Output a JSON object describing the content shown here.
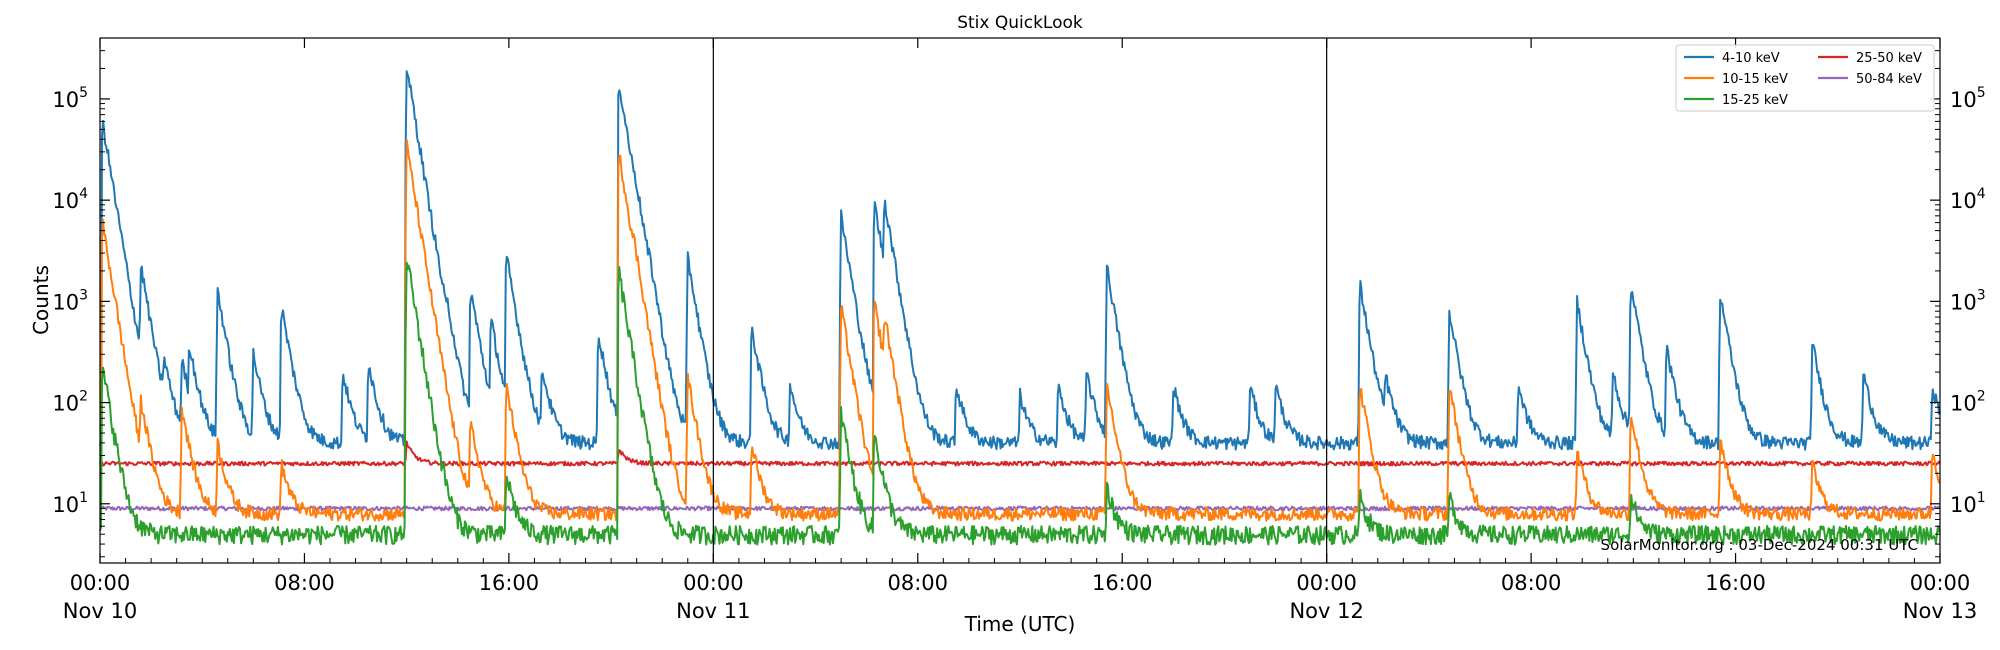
{
  "chart_data": {
    "type": "line",
    "title": "Stix QuickLook",
    "xlabel": "Time (UTC)",
    "ylabel": "Counts",
    "yscale": "log",
    "ylim": [
      2.6,
      400000
    ],
    "xlim_hours": [
      0,
      72
    ],
    "x_ticks": [
      {
        "hour": 0,
        "time": "00:00",
        "date": "Nov 10"
      },
      {
        "hour": 8,
        "time": "08:00",
        "date": ""
      },
      {
        "hour": 16,
        "time": "16:00",
        "date": ""
      },
      {
        "hour": 24,
        "time": "00:00",
        "date": "Nov 11"
      },
      {
        "hour": 32,
        "time": "08:00",
        "date": ""
      },
      {
        "hour": 40,
        "time": "16:00",
        "date": ""
      },
      {
        "hour": 48,
        "time": "00:00",
        "date": "Nov 12"
      },
      {
        "hour": 56,
        "time": "08:00",
        "date": ""
      },
      {
        "hour": 64,
        "time": "16:00",
        "date": ""
      },
      {
        "hour": 72,
        "time": "00:00",
        "date": "Nov 13"
      }
    ],
    "y_ticks": [
      {
        "value": 10,
        "base": "10",
        "exp": "1"
      },
      {
        "value": 100,
        "base": "10",
        "exp": "2"
      },
      {
        "value": 1000,
        "base": "10",
        "exp": "3"
      },
      {
        "value": 10000,
        "base": "10",
        "exp": "4"
      },
      {
        "value": 100000,
        "base": "10",
        "exp": "5"
      }
    ],
    "day_boundaries_hours": [
      24,
      48
    ],
    "grid": false,
    "legend_position": "top-right",
    "series": [
      {
        "name": "4-10 keV",
        "color": "#1f77b4",
        "baseline": 40,
        "events": [
          {
            "t": 0.1,
            "peak": 60000
          },
          {
            "t": 0.8,
            "peak": 150
          },
          {
            "t": 1.6,
            "peak": 2000
          },
          {
            "t": 2.5,
            "peak": 200
          },
          {
            "t": 3.2,
            "peak": 250
          },
          {
            "t": 3.5,
            "peak": 300
          },
          {
            "t": 4.6,
            "peak": 1300
          },
          {
            "t": 6.0,
            "peak": 300
          },
          {
            "t": 7.1,
            "peak": 900
          },
          {
            "t": 9.5,
            "peak": 200
          },
          {
            "t": 10.5,
            "peak": 250
          },
          {
            "t": 12.0,
            "peak": 210000
          },
          {
            "t": 12.9,
            "peak": 200
          },
          {
            "t": 13.6,
            "peak": 300
          },
          {
            "t": 14.5,
            "peak": 1300
          },
          {
            "t": 15.3,
            "peak": 600
          },
          {
            "t": 15.9,
            "peak": 2800
          },
          {
            "t": 17.3,
            "peak": 200
          },
          {
            "t": 19.5,
            "peak": 500
          },
          {
            "t": 20.3,
            "peak": 150000
          },
          {
            "t": 20.9,
            "peak": 3000
          },
          {
            "t": 21.5,
            "peak": 500
          },
          {
            "t": 23.0,
            "peak": 2700
          },
          {
            "t": 25.5,
            "peak": 550
          },
          {
            "t": 27.0,
            "peak": 150
          },
          {
            "t": 29.0,
            "peak": 7000
          },
          {
            "t": 30.3,
            "peak": 9500
          },
          {
            "t": 30.7,
            "peak": 8000
          },
          {
            "t": 33.5,
            "peak": 150
          },
          {
            "t": 36.0,
            "peak": 120
          },
          {
            "t": 37.5,
            "peak": 150
          },
          {
            "t": 38.6,
            "peak": 200
          },
          {
            "t": 39.4,
            "peak": 2200
          },
          {
            "t": 42.0,
            "peak": 150
          },
          {
            "t": 45.0,
            "peak": 150
          },
          {
            "t": 46.0,
            "peak": 150
          },
          {
            "t": 49.3,
            "peak": 1500
          },
          {
            "t": 50.3,
            "peak": 150
          },
          {
            "t": 52.8,
            "peak": 800
          },
          {
            "t": 55.5,
            "peak": 150
          },
          {
            "t": 57.8,
            "peak": 1000
          },
          {
            "t": 59.2,
            "peak": 200
          },
          {
            "t": 59.9,
            "peak": 1500
          },
          {
            "t": 61.3,
            "peak": 350
          },
          {
            "t": 63.4,
            "peak": 1200
          },
          {
            "t": 67.0,
            "peak": 400
          },
          {
            "t": 69.0,
            "peak": 200
          },
          {
            "t": 71.7,
            "peak": 150
          }
        ]
      },
      {
        "name": "10-15 keV",
        "color": "#ff7f0e",
        "baseline": 8,
        "events": [
          {
            "t": 0.1,
            "peak": 6000
          },
          {
            "t": 1.6,
            "peak": 80
          },
          {
            "t": 3.2,
            "peak": 90
          },
          {
            "t": 4.6,
            "peak": 40
          },
          {
            "t": 7.1,
            "peak": 25
          },
          {
            "t": 12.0,
            "peak": 35000
          },
          {
            "t": 14.5,
            "peak": 60
          },
          {
            "t": 15.9,
            "peak": 150
          },
          {
            "t": 20.3,
            "peak": 30000
          },
          {
            "t": 20.9,
            "peak": 600
          },
          {
            "t": 23.0,
            "peak": 180
          },
          {
            "t": 25.5,
            "peak": 40
          },
          {
            "t": 29.0,
            "peak": 900
          },
          {
            "t": 30.3,
            "peak": 1000
          },
          {
            "t": 30.7,
            "peak": 500
          },
          {
            "t": 39.4,
            "peak": 150
          },
          {
            "t": 49.3,
            "peak": 150
          },
          {
            "t": 52.8,
            "peak": 150
          },
          {
            "t": 57.8,
            "peak": 35
          },
          {
            "t": 59.9,
            "peak": 80
          },
          {
            "t": 63.4,
            "peak": 45
          },
          {
            "t": 67.0,
            "peak": 25
          },
          {
            "t": 71.7,
            "peak": 35
          }
        ]
      },
      {
        "name": "15-25 keV",
        "color": "#2ca02c",
        "baseline": 5,
        "events": [
          {
            "t": 0.1,
            "peak": 230
          },
          {
            "t": 12.0,
            "peak": 2800
          },
          {
            "t": 15.9,
            "peak": 20
          },
          {
            "t": 20.3,
            "peak": 2000
          },
          {
            "t": 20.9,
            "peak": 15
          },
          {
            "t": 29.0,
            "peak": 80
          },
          {
            "t": 30.3,
            "peak": 50
          },
          {
            "t": 39.4,
            "peak": 15
          },
          {
            "t": 49.3,
            "peak": 12
          },
          {
            "t": 52.8,
            "peak": 12
          },
          {
            "t": 59.9,
            "peak": 12
          }
        ]
      },
      {
        "name": "25-50 keV",
        "color": "#d62728",
        "baseline": 25,
        "events": [
          {
            "t": 12.0,
            "peak": 40
          },
          {
            "t": 20.3,
            "peak": 35
          }
        ]
      },
      {
        "name": "50-84 keV",
        "color": "#9467bd",
        "baseline": 9,
        "events": []
      }
    ],
    "annotation": "SolarMonitor.org : 03-Dec-2024 00:31 UTC"
  }
}
